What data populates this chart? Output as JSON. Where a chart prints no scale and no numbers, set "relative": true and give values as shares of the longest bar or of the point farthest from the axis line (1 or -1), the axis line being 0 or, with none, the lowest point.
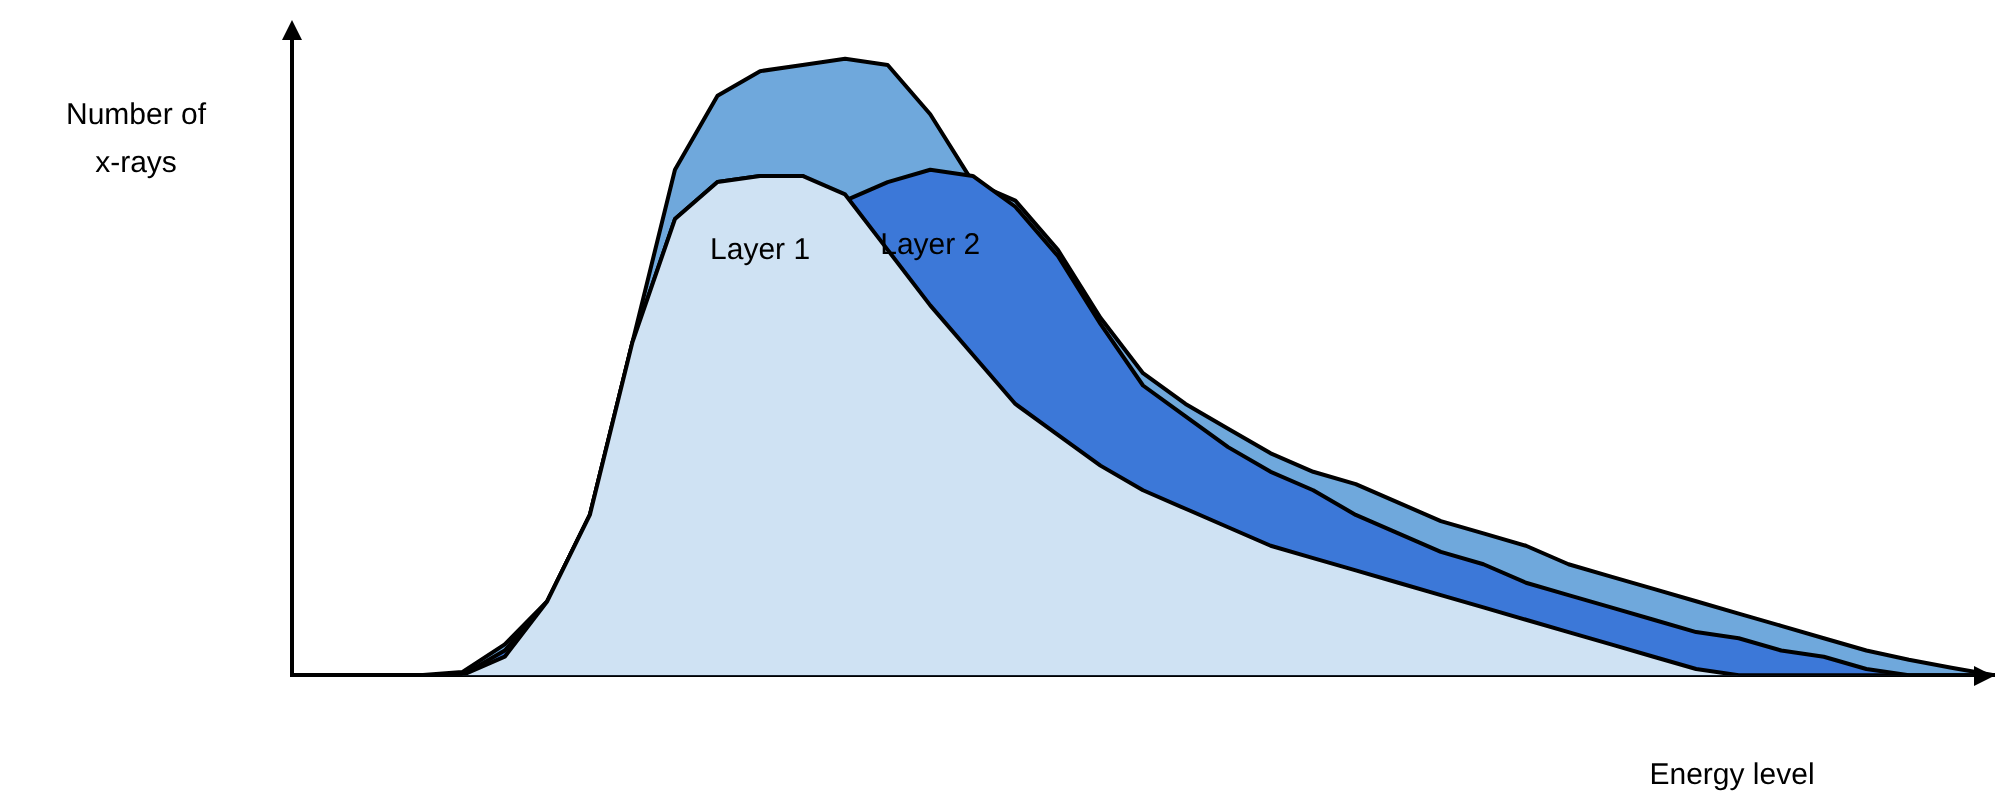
{
  "chart_data": {
    "type": "area",
    "relative": true,
    "xlabel": "Energy level",
    "ylabel": "Number of x-rays",
    "grid": false,
    "legend": false,
    "marker": "none",
    "categories": [
      null,
      null,
      null,
      null,
      null,
      null,
      null,
      null,
      null,
      null,
      null,
      null,
      null,
      null,
      null,
      null,
      null,
      null,
      null,
      null,
      null,
      null,
      null,
      null,
      null,
      null,
      null,
      null,
      null,
      null,
      null,
      null,
      null,
      null,
      null,
      null,
      null,
      null,
      null,
      null,
      null
    ],
    "series": [
      {
        "color": "#6fa8dc",
        "values": [
          0,
          0,
          0,
          0,
          0.005,
          0.05,
          0.12,
          0.26,
          0.54,
          0.82,
          0.94,
          0.98,
          0.99,
          1,
          0.99,
          0.91,
          0.8,
          0.77,
          0.69,
          0.58,
          0.49,
          0.44,
          0.4,
          0.36,
          0.33,
          0.31,
          0.28,
          0.25,
          0.23,
          0.21,
          0.18,
          0.16,
          0.14,
          0.12,
          0.1,
          0.08,
          0.06,
          0.04,
          0.025,
          0.012,
          0
        ]
      },
      {
        "name": "Layer 2",
        "color": "#3c78d8",
        "values": [
          0,
          0,
          0,
          0,
          0,
          0.04,
          0.12,
          0.26,
          0.54,
          0.74,
          0.8,
          0.81,
          0.81,
          0.77,
          0.8,
          0.82,
          0.81,
          0.76,
          0.68,
          0.57,
          0.47,
          0.42,
          0.37,
          0.33,
          0.3,
          0.26,
          0.23,
          0.2,
          0.18,
          0.15,
          0.13,
          0.11,
          0.09,
          0.07,
          0.06,
          0.04,
          0.03,
          0.01,
          0,
          0,
          0
        ]
      },
      {
        "name": "Layer 1",
        "color": "#cfe2f3",
        "values": [
          0,
          0,
          0,
          0,
          0,
          0.03,
          0.12,
          0.26,
          0.54,
          0.74,
          0.8,
          0.81,
          0.81,
          0.78,
          0.69,
          0.6,
          0.52,
          0.44,
          0.39,
          0.34,
          0.3,
          0.27,
          0.24,
          0.21,
          0.19,
          0.17,
          0.15,
          0.13,
          0.11,
          0.09,
          0.07,
          0.05,
          0.03,
          0.01,
          0,
          0,
          0,
          0,
          0,
          0,
          0
        ]
      }
    ]
  }
}
